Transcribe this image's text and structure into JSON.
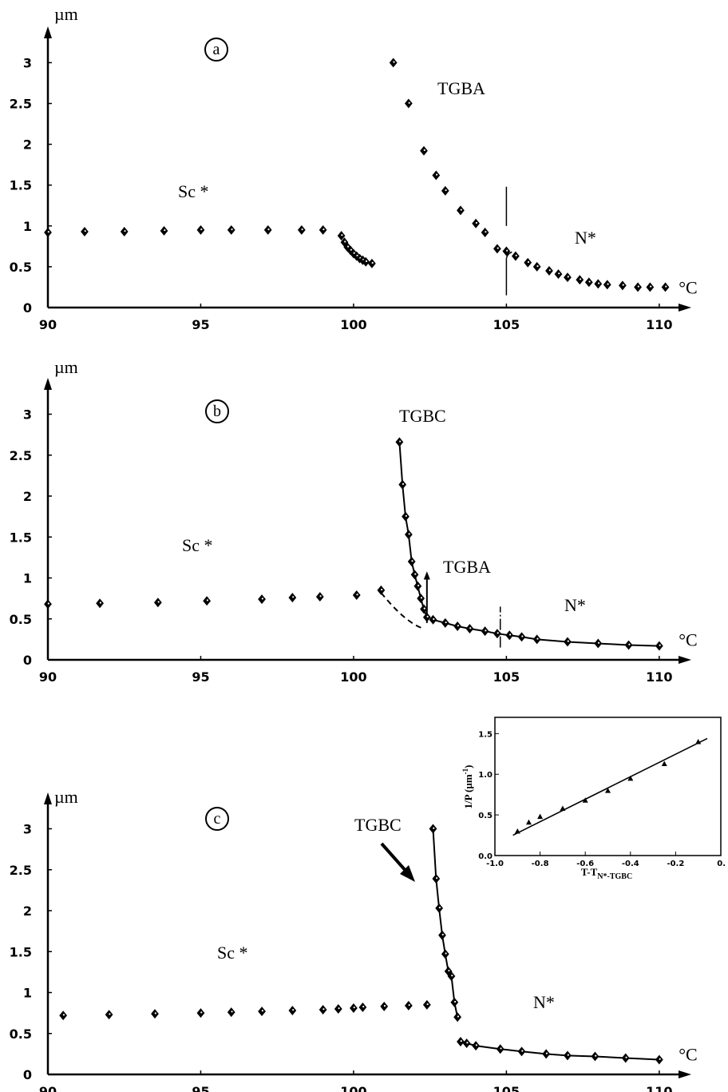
{
  "chart_data": [
    {
      "panel": "a",
      "type": "scatter",
      "xlabel": "°C",
      "ylabel": "µm",
      "xlim": [
        90,
        110.5
      ],
      "ylim": [
        0,
        3.2
      ],
      "xticks": [
        "90",
        "95",
        "100",
        "105",
        "110"
      ],
      "yticks": [
        "0",
        "0.5",
        "1",
        "1.5",
        "2",
        "2.5",
        "3"
      ],
      "annotations": [
        "Sc *",
        "TGBA",
        "N*"
      ],
      "transition_marks_x": [
        105
      ],
      "series": [
        {
          "x": [
            90,
            91.2,
            92.5,
            93.8,
            95,
            96,
            97.2,
            98.3,
            99,
            99.6,
            99.7,
            99.8,
            99.9,
            100,
            100.1,
            100.2,
            100.3,
            100.4,
            100.6,
            101.3,
            101.8,
            102.3,
            102.7,
            103,
            103.5,
            104,
            104.3,
            104.7,
            105,
            105.3,
            105.7,
            106,
            106.4,
            106.7,
            107,
            107.4,
            107.7,
            108,
            108.3,
            108.8,
            109.3,
            109.7,
            110.2
          ],
          "y": [
            0.92,
            0.93,
            0.93,
            0.94,
            0.95,
            0.95,
            0.95,
            0.95,
            0.95,
            0.88,
            0.8,
            0.74,
            0.7,
            0.66,
            0.63,
            0.6,
            0.58,
            0.56,
            0.54,
            3,
            2.5,
            1.92,
            1.62,
            1.43,
            1.19,
            1.03,
            0.92,
            0.72,
            0.69,
            0.63,
            0.55,
            0.5,
            0.45,
            0.41,
            0.37,
            0.34,
            0.31,
            0.29,
            0.28,
            0.27,
            0.25,
            0.25,
            0.25
          ]
        }
      ]
    },
    {
      "panel": "b",
      "type": "scatter",
      "xlabel": "°C",
      "ylabel": "µm",
      "xlim": [
        90,
        110.5
      ],
      "ylim": [
        0,
        3.2
      ],
      "xticks": [
        "90",
        "95",
        "100",
        "105",
        "110"
      ],
      "yticks": [
        "0",
        "0.5",
        "1",
        "1.5",
        "2",
        "2.5",
        "3"
      ],
      "annotations": [
        "Sc *",
        "TGBC",
        "TGBA",
        "N*"
      ],
      "transition_marks_x": [
        102.4,
        104.8
      ],
      "series": [
        {
          "x": [
            90,
            91.7,
            93.6,
            95.2,
            97,
            98,
            98.9,
            100.1,
            100.9,
            101.5,
            101.6,
            101.7,
            101.8,
            101.9,
            102,
            102.1,
            102.2,
            102.3,
            102.4,
            102.6,
            103,
            103.4,
            103.8,
            104.3,
            104.7,
            105.1,
            105.5,
            106,
            107,
            108,
            109,
            110
          ],
          "y": [
            0.68,
            0.69,
            0.7,
            0.72,
            0.74,
            0.76,
            0.77,
            0.79,
            0.85,
            2.66,
            2.14,
            1.75,
            1.53,
            1.2,
            1.04,
            0.9,
            0.75,
            0.62,
            0.52,
            0.49,
            0.45,
            0.41,
            0.38,
            0.35,
            0.32,
            0.3,
            0.28,
            0.25,
            0.22,
            0.2,
            0.18,
            0.17
          ]
        }
      ]
    },
    {
      "panel": "c",
      "type": "scatter",
      "xlabel": "°C",
      "ylabel": "µm",
      "xlim": [
        90,
        110.5
      ],
      "ylim": [
        0,
        3.2
      ],
      "xticks": [
        "90",
        "95",
        "100",
        "105",
        "110"
      ],
      "yticks": [
        "0",
        "0.5",
        "1",
        "1.5",
        "2",
        "2.5",
        "3"
      ],
      "annotations": [
        "Sc *",
        "TGBC",
        "N*"
      ],
      "series": [
        {
          "x": [
            90.5,
            92,
            93.5,
            95,
            96,
            97,
            98,
            99,
            99.5,
            100,
            100.3,
            101,
            101.8,
            102.4,
            102.6,
            102.7,
            102.8,
            102.9,
            103,
            103.1,
            103.2,
            103.3,
            103.4,
            103.5,
            103.7,
            104,
            104.8,
            105.5,
            106.3,
            107,
            107.9,
            108.9,
            110
          ],
          "y": [
            0.72,
            0.73,
            0.74,
            0.75,
            0.76,
            0.77,
            0.78,
            0.79,
            0.8,
            0.81,
            0.82,
            0.83,
            0.84,
            0.85,
            3,
            2.39,
            2.03,
            1.7,
            1.47,
            1.26,
            1.2,
            0.88,
            0.7,
            0.4,
            0.38,
            0.35,
            0.31,
            0.28,
            0.25,
            0.23,
            0.22,
            0.2,
            0.18
          ]
        }
      ],
      "inset": {
        "type": "scatter",
        "xlabel": "T-T",
        "xlabel_subscript": "N*-TGBC",
        "ylabel": "1/P (µm",
        "ylabel_superscript": "-1",
        "ylabel_end": ")",
        "xlim": [
          -1.0,
          0.0
        ],
        "ylim": [
          0.0,
          1.7
        ],
        "xticks": [
          "-1.0",
          "-0.8",
          "-0.6",
          "-0.4",
          "-0.2",
          "0."
        ],
        "yticks": [
          "0.0",
          "0.5",
          "1.0",
          "1.5"
        ],
        "fit_line": {
          "x": [
            -0.92,
            -0.06
          ],
          "y": [
            0.25,
            1.44
          ]
        },
        "series": [
          {
            "x": [
              -0.9,
              -0.85,
              -0.8,
              -0.7,
              -0.6,
              -0.5,
              -0.4,
              -0.25,
              -0.1
            ],
            "y": [
              0.3,
              0.41,
              0.48,
              0.58,
              0.68,
              0.8,
              0.95,
              1.13,
              1.4
            ]
          }
        ]
      }
    }
  ]
}
